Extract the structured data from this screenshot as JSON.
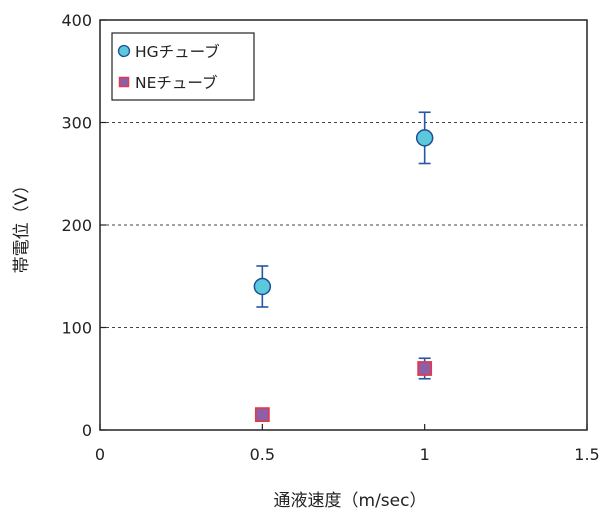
{
  "chart_data": {
    "type": "scatter",
    "title": "",
    "xlabel": "通液速度（m/sec）",
    "ylabel": "帯電位（V）",
    "xlim": [
      0,
      1.5
    ],
    "ylim": [
      0,
      400
    ],
    "x_ticks": [
      0,
      0.5,
      1,
      1.5
    ],
    "x_tick_labels": [
      "0",
      "0.5",
      "1",
      "1.5"
    ],
    "y_ticks": [
      0,
      100,
      200,
      300,
      400
    ],
    "y_tick_labels": [
      "0",
      "100",
      "200",
      "300",
      "400"
    ],
    "grid": "horizontal dashed",
    "legend_position": "top-left",
    "series": [
      {
        "name": "HGチューブ",
        "marker": "circle",
        "marker_color": "#5bc8dc",
        "marker_edge": "#1f4e96",
        "error_color": "#2457a6",
        "points": [
          {
            "x": 0.5,
            "y": 140,
            "err_low": 120,
            "err_high": 160
          },
          {
            "x": 1,
            "y": 285,
            "err_low": 260,
            "err_high": 310
          }
        ]
      },
      {
        "name": "NEチューブ",
        "marker": "square",
        "marker_color": "#8c5fa8",
        "marker_edge": "#e03a4e",
        "error_color": "#2457a6",
        "points": [
          {
            "x": 0.5,
            "y": 15,
            "err_low": 13,
            "err_high": 17
          },
          {
            "x": 1,
            "y": 60,
            "err_low": 50,
            "err_high": 70
          }
        ]
      }
    ]
  }
}
